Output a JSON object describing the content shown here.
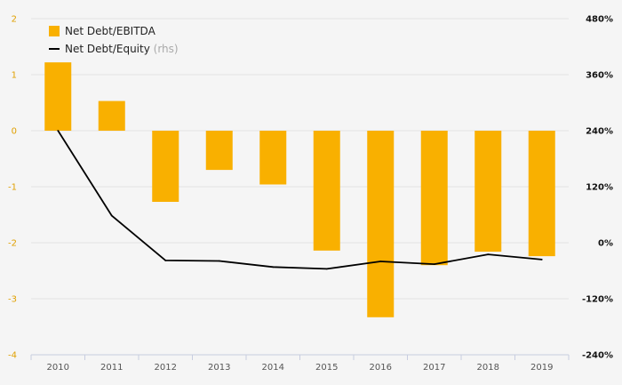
{
  "chart_data": {
    "type": "bar",
    "categories": [
      "2010",
      "2011",
      "2012",
      "2013",
      "2014",
      "2015",
      "2016",
      "2017",
      "2018",
      "2019"
    ],
    "series": [
      {
        "name": "Net Debt/EBITDA",
        "type": "bar",
        "axis": "left",
        "color": "#f9b000",
        "values": [
          1.22,
          0.53,
          -1.27,
          -0.7,
          -0.96,
          -2.14,
          -3.33,
          -2.4,
          -2.16,
          -2.24
        ]
      },
      {
        "name": "Net Debt/Equity",
        "legend_note": "(rhs)",
        "type": "line",
        "axis": "right",
        "color": "#000000",
        "values": [
          240,
          58,
          -38,
          -39,
          -52,
          -56,
          -40,
          -46,
          -25,
          -36
        ]
      }
    ],
    "y_left": {
      "min": -4,
      "max": 2,
      "ticks": [
        "2",
        "1",
        "0",
        "-1",
        "-2",
        "-3",
        "-4"
      ]
    },
    "y_right": {
      "min": -240,
      "max": 480,
      "ticks": [
        "480%",
        "360%",
        "240%",
        "120%",
        "0%",
        "-120%",
        "-240%"
      ]
    },
    "grid": true,
    "legend_position": "top-left"
  }
}
